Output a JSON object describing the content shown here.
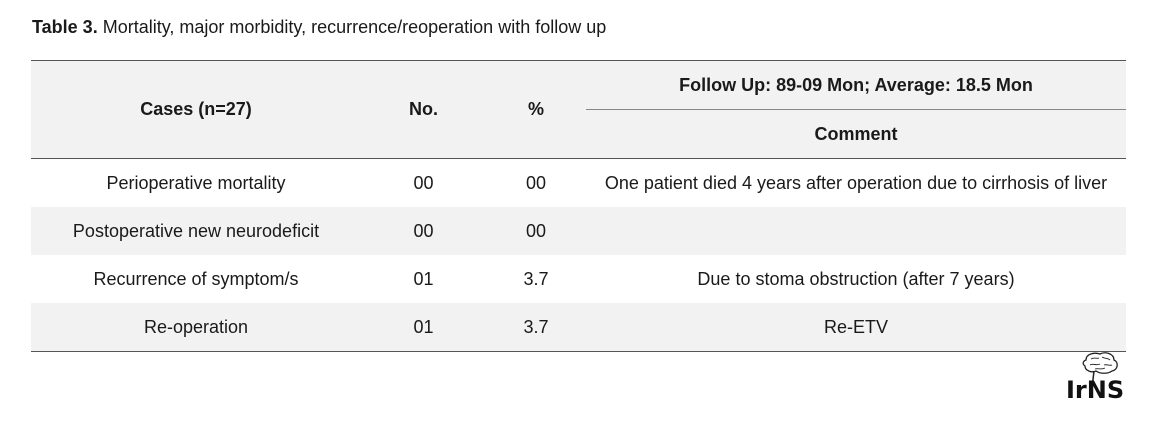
{
  "caption": {
    "label": "Table 3.",
    "text": "Mortality, major morbidity, recurrence/reoperation with follow up"
  },
  "table": {
    "headers": {
      "cases": "Cases (n=27)",
      "no": "No.",
      "percent": "%",
      "follow_up": "Follow Up: 89-09 Mon; Average: 18.5 Mon",
      "comment": "Comment"
    },
    "rows": [
      {
        "case": "Perioperative mortality",
        "no": "00",
        "percent": "00",
        "comment": "One patient died 4 years after operation due to cirrhosis of liver"
      },
      {
        "case": "Postoperative new neurodeficit",
        "no": "00",
        "percent": "00",
        "comment": ""
      },
      {
        "case": "Recurrence of symptom/s",
        "no": "01",
        "percent": "3.7",
        "comment": "Due to stoma obstruction (after 7 years)"
      },
      {
        "case": "Re-operation",
        "no": "01",
        "percent": "3.7",
        "comment": "Re-ETV"
      }
    ]
  },
  "logo": {
    "text": "IrNS",
    "icon": "brain-logo-icon"
  }
}
